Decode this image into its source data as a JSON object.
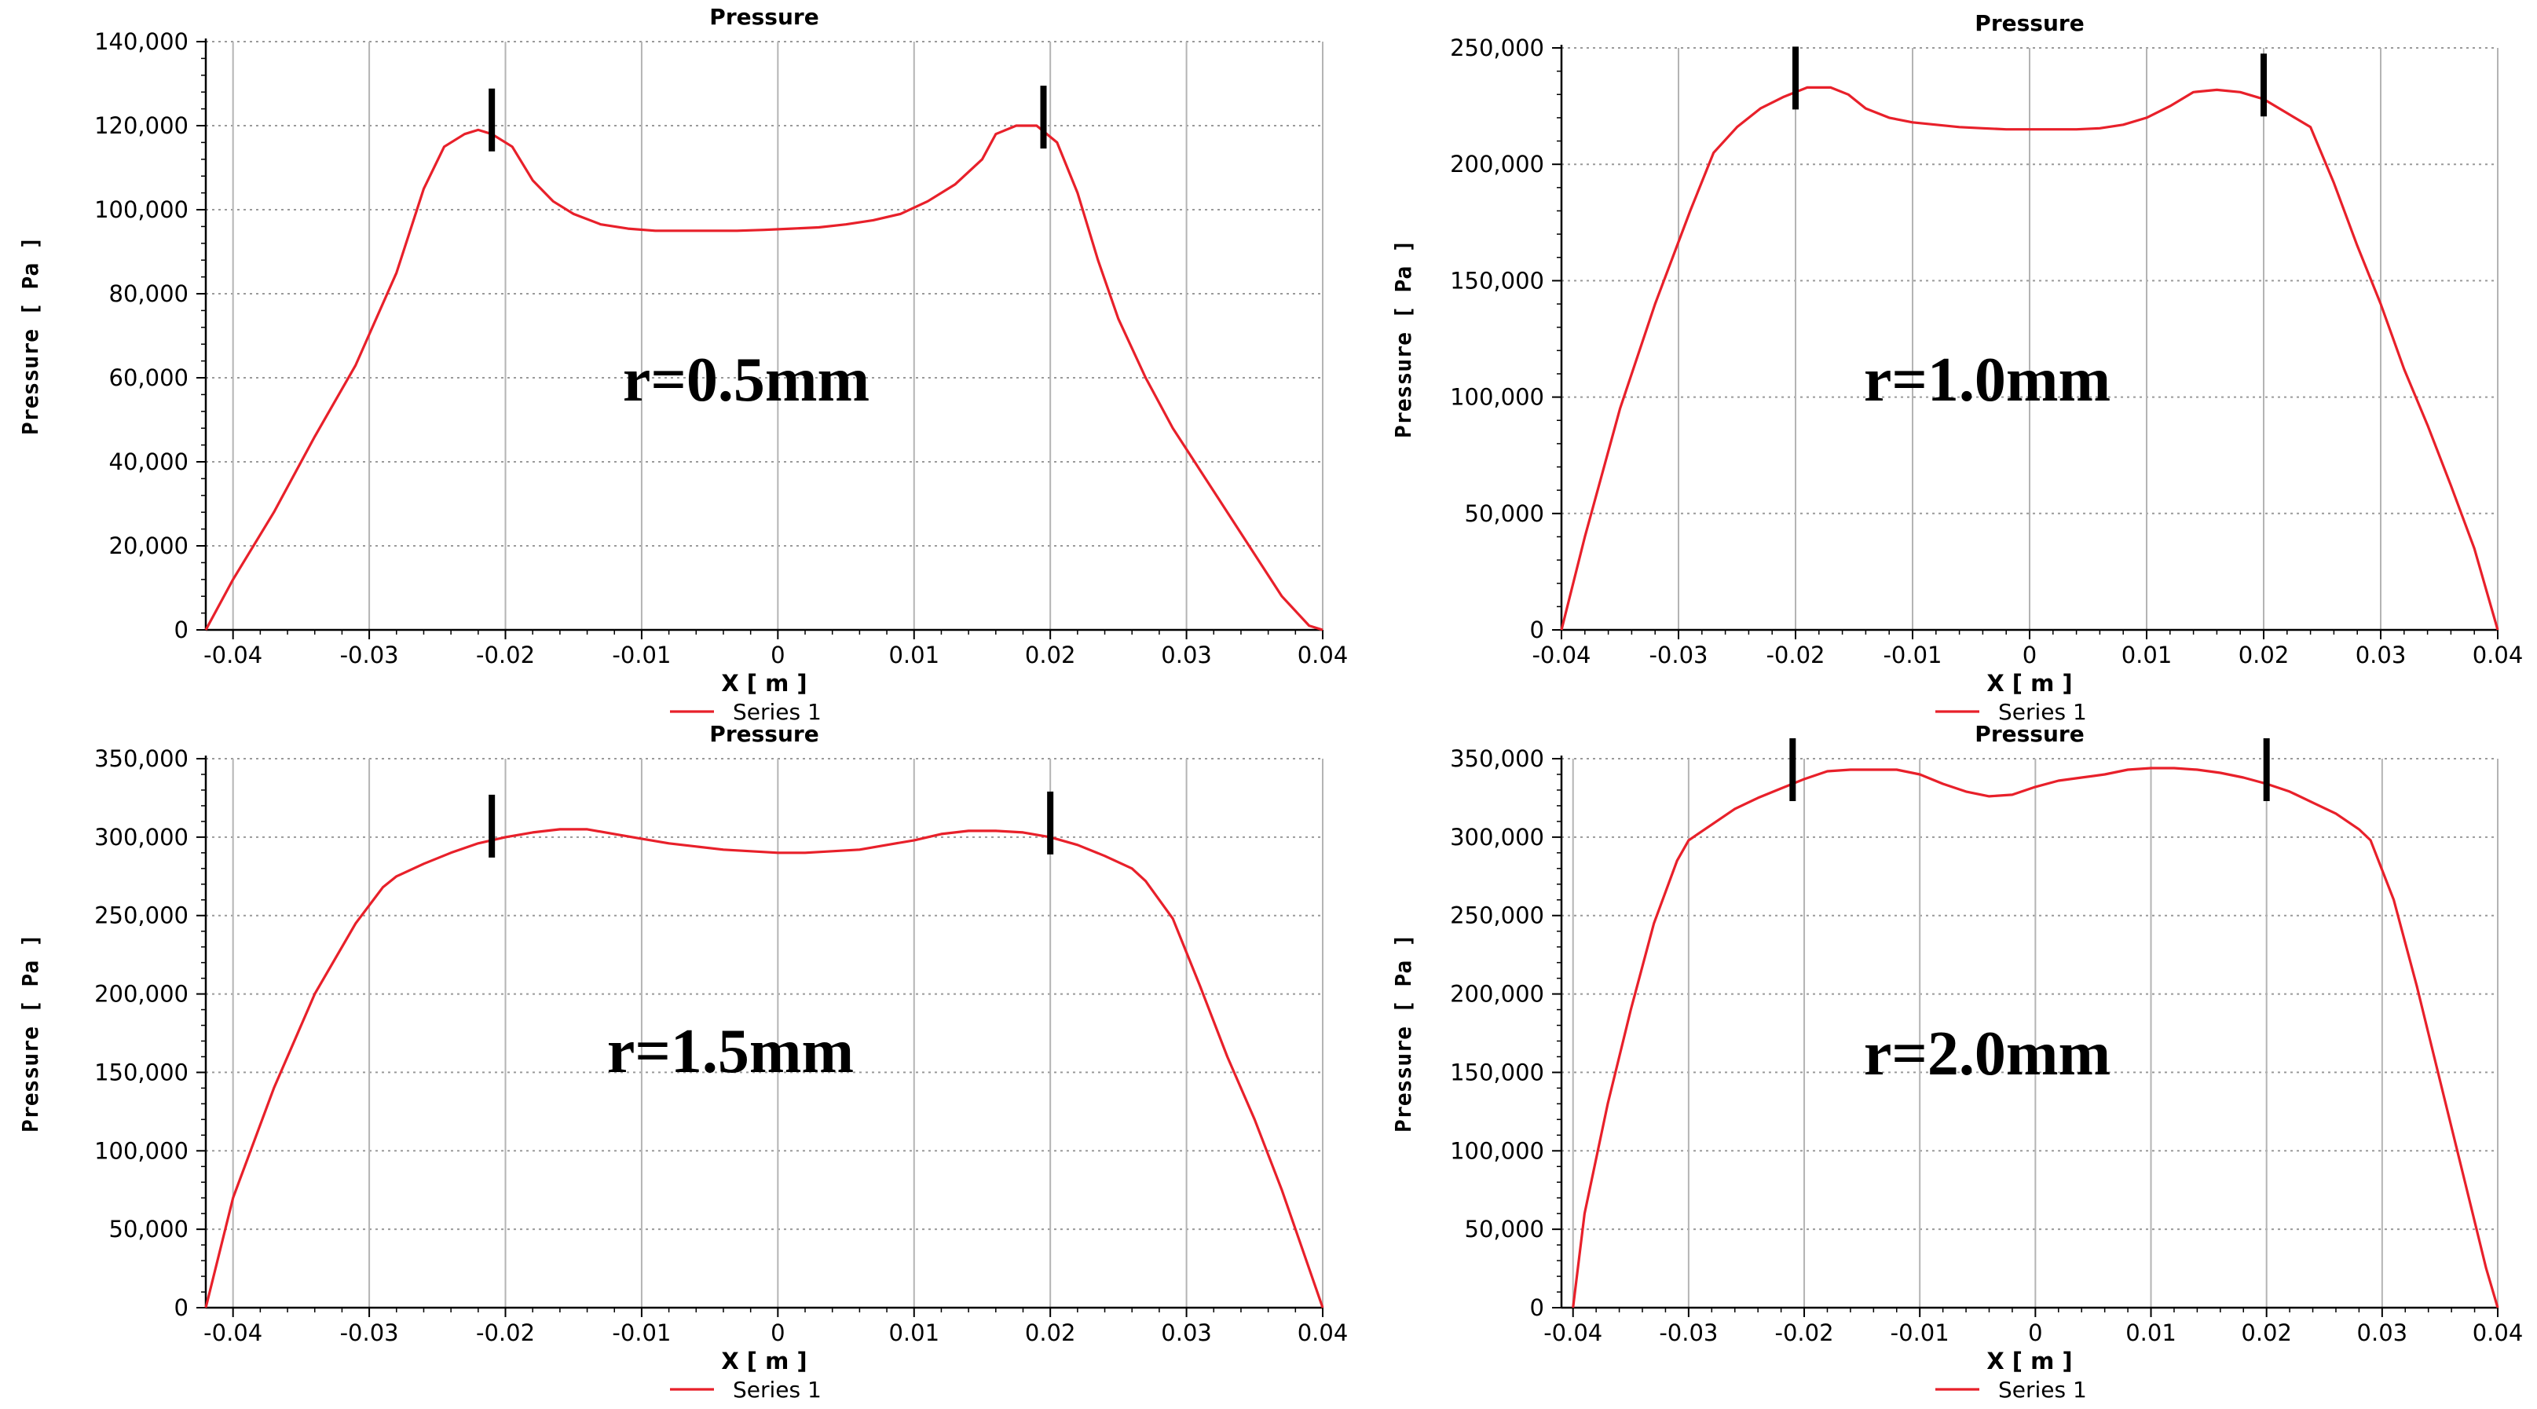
{
  "chart_data": [
    {
      "type": "line",
      "title": "Pressure",
      "xlabel": "X [ m ]",
      "ylabel": "Pressure [ Pa ]",
      "annotation": "r=0.5mm",
      "xlim": [
        -0.042,
        0.04
      ],
      "ylim": [
        0,
        140000
      ],
      "xticks": [
        -0.04,
        -0.03,
        -0.02,
        -0.01,
        0,
        0.01,
        0.02,
        0.03,
        0.04
      ],
      "xtick_labels": [
        "-0.04",
        "-0.03",
        "-0.02",
        "-0.01",
        "0",
        "0.01",
        "0.02",
        "0.03",
        "0.04"
      ],
      "yticks": [
        0,
        20000,
        40000,
        60000,
        80000,
        100000,
        120000,
        140000
      ],
      "ytick_labels": [
        "0",
        "20,000",
        "40,000",
        "60,000",
        "80,000",
        "100,000",
        "120,000",
        "140,000"
      ],
      "grid": true,
      "legend_position": "bottom-center",
      "markers_x": [
        -0.021,
        0.0195
      ],
      "series": [
        {
          "name": "Series 1",
          "color": "#e8202a",
          "x": [
            -0.042,
            -0.04,
            -0.037,
            -0.034,
            -0.031,
            -0.028,
            -0.026,
            -0.0245,
            -0.023,
            -0.022,
            -0.021,
            -0.0195,
            -0.018,
            -0.0165,
            -0.015,
            -0.013,
            -0.011,
            -0.009,
            -0.007,
            -0.005,
            -0.003,
            -0.001,
            0.001,
            0.003,
            0.005,
            0.007,
            0.009,
            0.011,
            0.013,
            0.015,
            0.016,
            0.0175,
            0.019,
            0.0205,
            0.022,
            0.0235,
            0.025,
            0.027,
            0.029,
            0.031,
            0.033,
            0.035,
            0.037,
            0.039,
            0.04
          ],
          "y": [
            0,
            12000,
            28000,
            46000,
            63000,
            85000,
            105000,
            115000,
            118000,
            119000,
            118000,
            115000,
            107000,
            102000,
            99000,
            96500,
            95500,
            95000,
            95000,
            95000,
            95000,
            95200,
            95500,
            95800,
            96500,
            97500,
            99000,
            102000,
            106000,
            112000,
            118000,
            120000,
            120000,
            116000,
            104000,
            88000,
            74000,
            60000,
            48000,
            38000,
            28000,
            18000,
            8000,
            1000,
            0
          ]
        }
      ]
    },
    {
      "type": "line",
      "title": "Pressure",
      "xlabel": "X [ m ]",
      "ylabel": "Pressure [ Pa ]",
      "annotation": "r=1.0mm",
      "xlim": [
        -0.04,
        0.04
      ],
      "ylim": [
        0,
        250000
      ],
      "xticks": [
        -0.04,
        -0.03,
        -0.02,
        -0.01,
        0,
        0.01,
        0.02,
        0.03,
        0.04
      ],
      "xtick_labels": [
        "-0.04",
        "-0.03",
        "-0.02",
        "-0.01",
        "0",
        "0.01",
        "0.02",
        "0.03",
        "0.04"
      ],
      "yticks": [
        0,
        50000,
        100000,
        150000,
        200000,
        250000
      ],
      "ytick_labels": [
        "0",
        "50,000",
        "100,000",
        "150,000",
        "200,000",
        "250,000"
      ],
      "grid": true,
      "legend_position": "bottom-center",
      "markers_x": [
        -0.02,
        0.02
      ],
      "series": [
        {
          "name": "Series 1",
          "color": "#e8202a",
          "x": [
            -0.04,
            -0.038,
            -0.035,
            -0.032,
            -0.029,
            -0.027,
            -0.025,
            -0.023,
            -0.021,
            -0.019,
            -0.017,
            -0.0155,
            -0.014,
            -0.012,
            -0.01,
            -0.008,
            -0.006,
            -0.004,
            -0.002,
            0,
            0.002,
            0.004,
            0.006,
            0.008,
            0.01,
            0.012,
            0.014,
            0.016,
            0.018,
            0.02,
            0.022,
            0.024,
            0.026,
            0.028,
            0.03,
            0.032,
            0.034,
            0.036,
            0.038,
            0.04
          ],
          "y": [
            0,
            40000,
            95000,
            140000,
            180000,
            205000,
            216000,
            224000,
            229000,
            233000,
            233000,
            230000,
            224000,
            220000,
            218000,
            217000,
            216000,
            215500,
            215000,
            215000,
            215000,
            215000,
            215500,
            217000,
            220000,
            225000,
            231000,
            232000,
            231000,
            228000,
            222000,
            216000,
            192000,
            165000,
            140000,
            112000,
            88000,
            62000,
            35000,
            0
          ]
        }
      ]
    },
    {
      "type": "line",
      "title": "Pressure",
      "xlabel": "X [ m ]",
      "ylabel": "Pressure [ Pa ]",
      "annotation": "r=1.5mm",
      "xlim": [
        -0.042,
        0.04
      ],
      "ylim": [
        0,
        350000
      ],
      "xticks": [
        -0.04,
        -0.03,
        -0.02,
        -0.01,
        0,
        0.01,
        0.02,
        0.03,
        0.04
      ],
      "xtick_labels": [
        "-0.04",
        "-0.03",
        "-0.02",
        "-0.01",
        "0",
        "0.01",
        "0.02",
        "0.03",
        "0.04"
      ],
      "yticks": [
        0,
        50000,
        100000,
        150000,
        200000,
        250000,
        300000,
        350000
      ],
      "ytick_labels": [
        "0",
        "50,000",
        "100,000",
        "150,000",
        "200,000",
        "250,000",
        "300,000",
        "350,000"
      ],
      "grid": true,
      "legend_position": "bottom-center",
      "markers_x": [
        -0.021,
        0.02
      ],
      "series": [
        {
          "name": "Series 1",
          "color": "#e8202a",
          "x": [
            -0.042,
            -0.04,
            -0.037,
            -0.034,
            -0.031,
            -0.029,
            -0.028,
            -0.026,
            -0.024,
            -0.022,
            -0.02,
            -0.018,
            -0.016,
            -0.014,
            -0.012,
            -0.01,
            -0.008,
            -0.006,
            -0.004,
            -0.002,
            0,
            0.002,
            0.004,
            0.006,
            0.008,
            0.01,
            0.012,
            0.014,
            0.016,
            0.018,
            0.02,
            0.022,
            0.024,
            0.026,
            0.027,
            0.029,
            0.031,
            0.033,
            0.035,
            0.037,
            0.039,
            0.04
          ],
          "y": [
            0,
            70000,
            140000,
            200000,
            245000,
            268000,
            275000,
            283000,
            290000,
            296000,
            300000,
            303000,
            305000,
            305000,
            302000,
            299000,
            296000,
            294000,
            292000,
            291000,
            290000,
            290000,
            291000,
            292000,
            295000,
            298000,
            302000,
            304000,
            304000,
            303000,
            300000,
            295000,
            288000,
            280000,
            272000,
            248000,
            205000,
            160000,
            120000,
            75000,
            25000,
            0
          ]
        }
      ]
    },
    {
      "type": "line",
      "title": "Pressure",
      "xlabel": "X [ m ]",
      "ylabel": "Pressure [ Pa ]",
      "annotation": "r=2.0mm",
      "xlim": [
        -0.041,
        0.04
      ],
      "ylim": [
        0,
        350000
      ],
      "xticks": [
        -0.04,
        -0.03,
        -0.02,
        -0.01,
        0,
        0.01,
        0.02,
        0.03,
        0.04
      ],
      "xtick_labels": [
        "-0.04",
        "-0.03",
        "-0.02",
        "-0.01",
        "0",
        "0.01",
        "0.02",
        "0.03",
        "0.04"
      ],
      "yticks": [
        0,
        50000,
        100000,
        150000,
        200000,
        250000,
        300000,
        350000
      ],
      "ytick_labels": [
        "0",
        "50,000",
        "100,000",
        "150,000",
        "200,000",
        "250,000",
        "300,000",
        "350,000"
      ],
      "grid": true,
      "legend_position": "bottom-center",
      "markers_x": [
        -0.021,
        0.02
      ],
      "series": [
        {
          "name": "Series 1",
          "color": "#e8202a",
          "x": [
            -0.04,
            -0.039,
            -0.037,
            -0.035,
            -0.033,
            -0.031,
            -0.03,
            -0.028,
            -0.026,
            -0.024,
            -0.022,
            -0.02,
            -0.018,
            -0.016,
            -0.014,
            -0.012,
            -0.01,
            -0.008,
            -0.006,
            -0.004,
            -0.002,
            0,
            0.002,
            0.004,
            0.006,
            0.008,
            0.01,
            0.012,
            0.014,
            0.016,
            0.018,
            0.02,
            0.022,
            0.024,
            0.026,
            0.028,
            0.029,
            0.031,
            0.033,
            0.035,
            0.037,
            0.039,
            0.04
          ],
          "y": [
            0,
            60000,
            130000,
            190000,
            245000,
            285000,
            298000,
            308000,
            318000,
            325000,
            331000,
            337000,
            342000,
            343000,
            343000,
            343000,
            340000,
            334000,
            329000,
            326000,
            327000,
            332000,
            336000,
            338000,
            340000,
            343000,
            344000,
            344000,
            343000,
            341000,
            338000,
            334000,
            329000,
            322000,
            315000,
            305000,
            298000,
            260000,
            205000,
            145000,
            85000,
            25000,
            0
          ]
        }
      ]
    }
  ]
}
